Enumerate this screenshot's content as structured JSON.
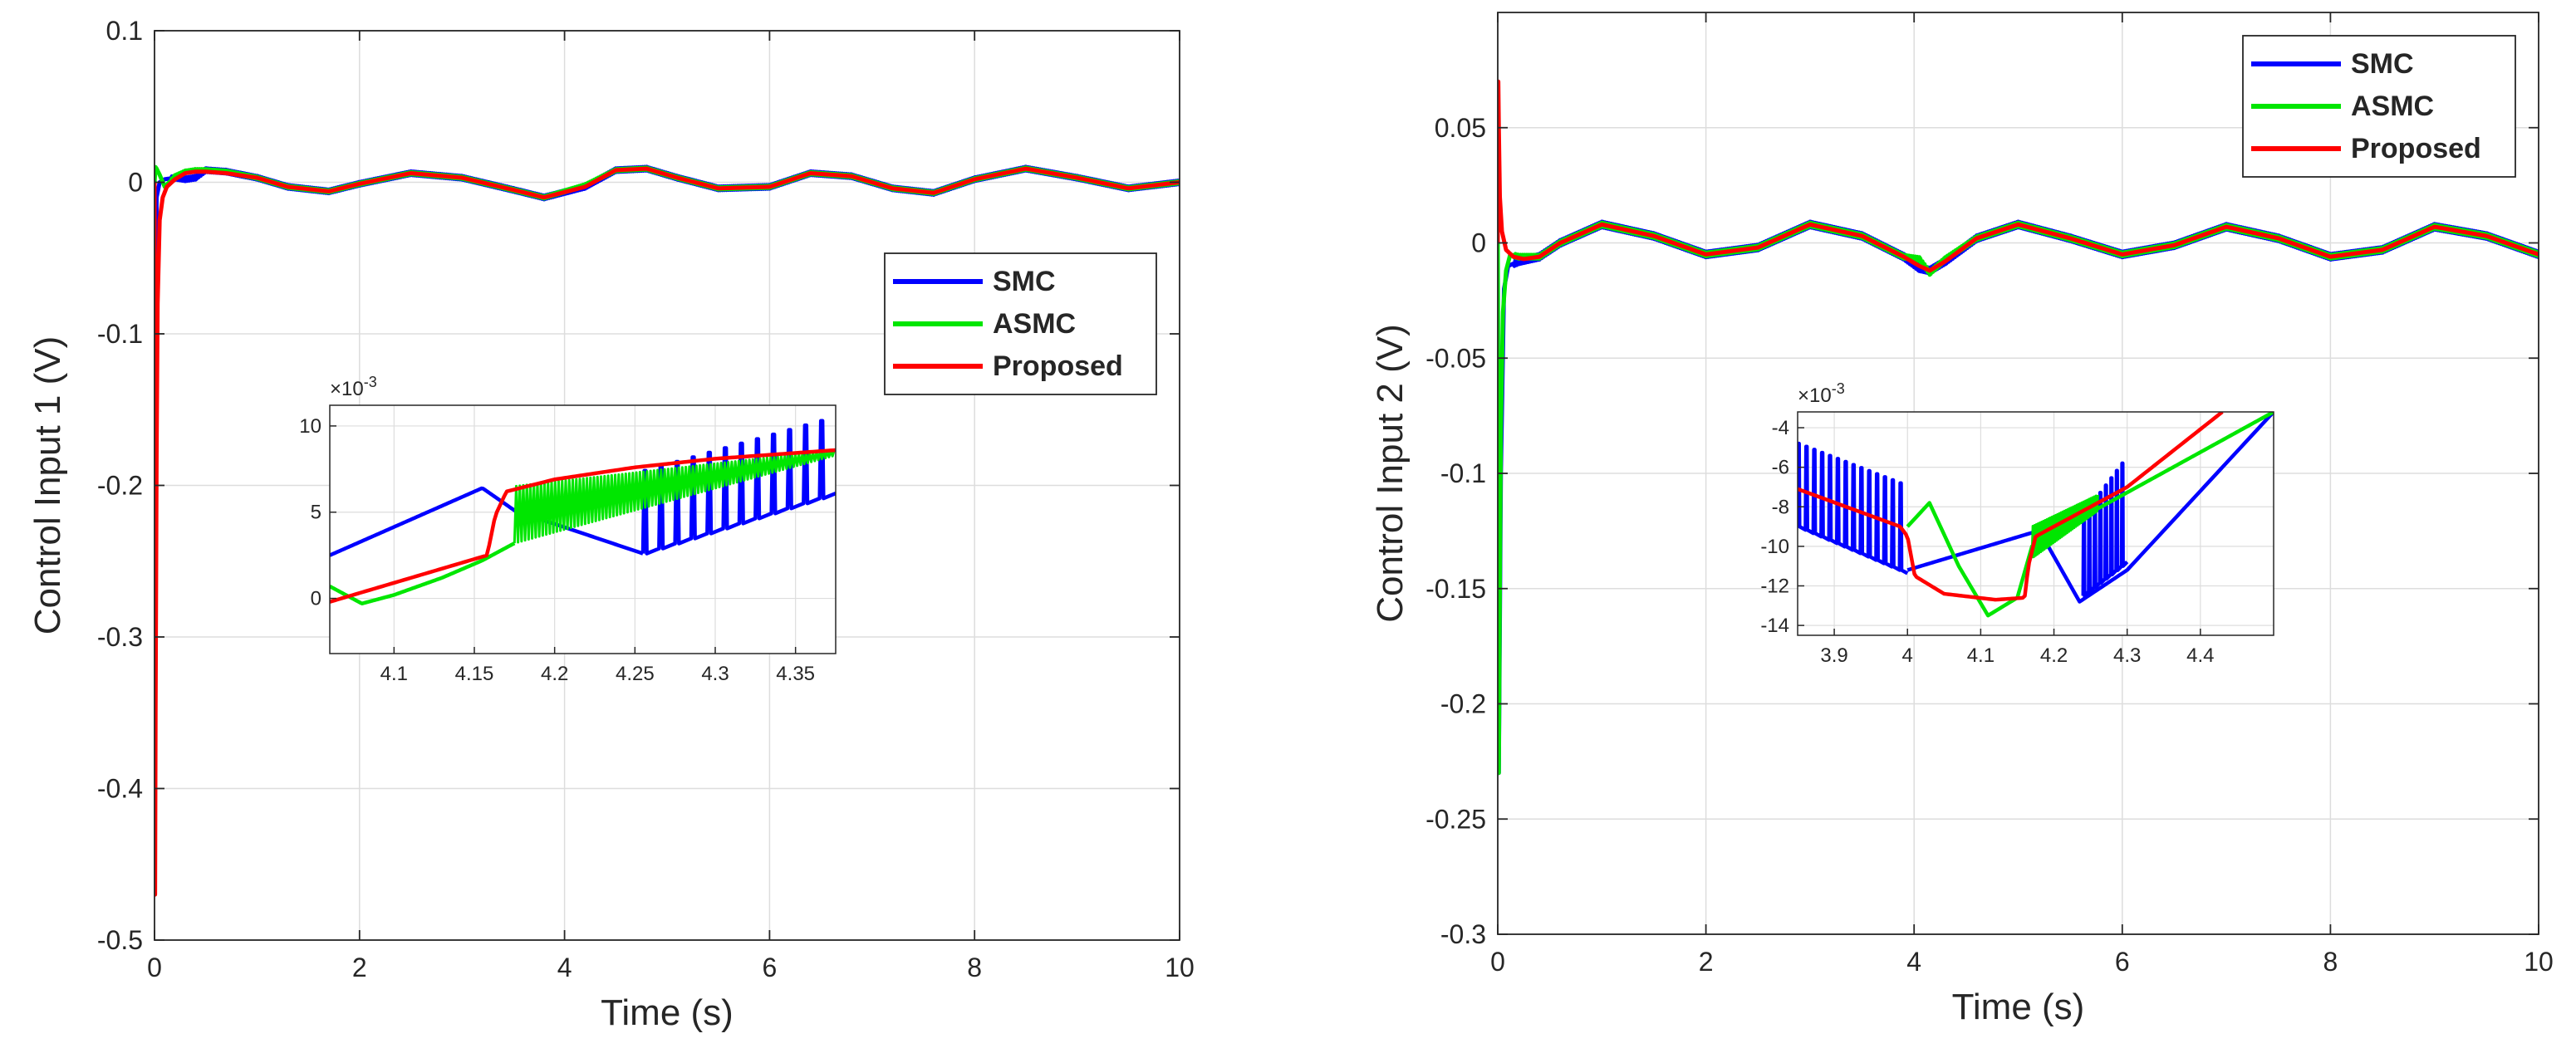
{
  "colors": {
    "smc": "#0000ff",
    "asmc": "#00e600",
    "proposed": "#ff0000",
    "grid": "#dddddd",
    "axis": "#262626",
    "text": "#262626"
  },
  "chart_data": [
    {
      "type": "line",
      "name": "panel-1",
      "xlabel": "Time (s)",
      "ylabel": "Control Input 1 (V)",
      "xlim": [
        0,
        10
      ],
      "ylim": [
        -0.5,
        0.1
      ],
      "xticks": [
        0,
        2,
        4,
        6,
        8,
        10
      ],
      "xtick_labels": [
        "0",
        "2",
        "4",
        "6",
        "8",
        "10"
      ],
      "yticks": [
        -0.5,
        -0.4,
        -0.3,
        -0.2,
        -0.1,
        0,
        0.1
      ],
      "ytick_labels": [
        "-0.5",
        "-0.4",
        "-0.3",
        "-0.2",
        "-0.1",
        "0",
        "0.1"
      ],
      "grid": true,
      "legend": {
        "placement": "right",
        "entries": [
          "SMC",
          "ASMC",
          "Proposed"
        ]
      },
      "series": [
        {
          "name": "SMC",
          "color_key": "smc",
          "noise": 0.0012,
          "x": [
            0,
            0.01,
            0.02,
            0.05,
            0.1,
            0.2,
            0.3,
            0.4,
            0.5,
            0.7,
            1.0,
            1.3,
            1.7,
            2.0,
            2.5,
            3.0,
            3.5,
            3.8,
            4.2,
            4.5,
            4.8,
            5.1,
            5.5,
            6.0,
            6.4,
            6.8,
            7.2,
            7.6,
            8.0,
            8.5,
            9.0,
            9.5,
            10.0
          ],
          "values": [
            0,
            -0.2,
            -0.01,
            0.0,
            0.002,
            0.003,
            0.002,
            0.003,
            0.008,
            0.007,
            0.003,
            -0.003,
            -0.006,
            -0.001,
            0.006,
            0.003,
            -0.005,
            -0.01,
            -0.003,
            0.008,
            0.009,
            0.003,
            -0.004,
            -0.003,
            0.006,
            0.004,
            -0.004,
            -0.007,
            0.002,
            0.009,
            0.003,
            -0.004,
            0.0
          ]
        },
        {
          "name": "ASMC",
          "color_key": "asmc",
          "noise": 0.0007,
          "x": [
            0,
            0.01,
            0.02,
            0.05,
            0.1,
            0.2,
            0.3,
            0.4,
            0.5,
            0.7,
            1.0,
            1.3,
            1.7,
            2.0,
            2.5,
            3.0,
            3.5,
            3.8,
            4.2,
            4.5,
            4.8,
            5.1,
            5.5,
            6.0,
            6.4,
            6.8,
            7.2,
            7.6,
            8.0,
            8.5,
            9.0,
            9.5,
            10.0
          ],
          "values": [
            0,
            0.01,
            0.009,
            0.005,
            -0.003,
            0.004,
            0.007,
            0.008,
            0.008,
            0.007,
            0.003,
            -0.003,
            -0.006,
            -0.001,
            0.006,
            0.003,
            -0.005,
            -0.01,
            -0.002,
            0.008,
            0.009,
            0.003,
            -0.004,
            -0.003,
            0.006,
            0.004,
            -0.004,
            -0.007,
            0.002,
            0.009,
            0.003,
            -0.004,
            0.0
          ]
        },
        {
          "name": "Proposed",
          "color_key": "proposed",
          "noise": 0,
          "x": [
            0,
            0.005,
            0.01,
            0.02,
            0.03,
            0.05,
            0.08,
            0.12,
            0.2,
            0.3,
            0.4,
            0.5,
            0.7,
            1.0,
            1.3,
            1.7,
            2.0,
            2.5,
            3.0,
            3.5,
            3.8,
            4.2,
            4.5,
            4.8,
            5.1,
            5.5,
            6.0,
            6.4,
            6.8,
            7.2,
            7.6,
            8.0,
            8.5,
            9.0,
            9.5,
            10.0
          ],
          "values": [
            0,
            -0.47,
            -0.35,
            -0.18,
            -0.08,
            -0.025,
            -0.01,
            -0.003,
            0.002,
            0.006,
            0.007,
            0.007,
            0.006,
            0.003,
            -0.003,
            -0.006,
            -0.001,
            0.006,
            0.003,
            -0.005,
            -0.01,
            -0.003,
            0.008,
            0.009,
            0.003,
            -0.004,
            -0.003,
            0.006,
            0.004,
            -0.004,
            -0.007,
            0.002,
            0.009,
            0.003,
            -0.004,
            0.0
          ]
        }
      ],
      "inset": {
        "exponent_label": "×10",
        "exponent_power": "-3",
        "xlim": [
          4.06,
          4.375
        ],
        "ylim": [
          -3.2,
          11.2
        ],
        "xticks": [
          4.1,
          4.15,
          4.2,
          4.25,
          4.3,
          4.35
        ],
        "xtick_labels": [
          "4.1",
          "4.15",
          "4.2",
          "4.25",
          "4.3",
          "4.35"
        ],
        "yticks": [
          0,
          5,
          10
        ],
        "ytick_labels": [
          "0",
          "5",
          "10"
        ],
        "series": [
          {
            "name": "SMC",
            "color_key": "smc",
            "x": [
              4.06,
              4.155,
              4.175,
              4.255
            ],
            "values": [
              2.5,
              6.4,
              5.1,
              2.6
            ],
            "spikes": {
              "x_start": 4.255,
              "x_end": 4.375,
              "base_start": 2.6,
              "base_end": 5.8,
              "top_start": 7.4,
              "top_end": 10.3,
              "count": 12,
              "period": 0.0115
            }
          },
          {
            "name": "ASMC",
            "color_key": "asmc",
            "x": [
              4.06,
              4.08,
              4.1,
              4.13,
              4.155,
              4.175
            ],
            "values": [
              0.7,
              -0.3,
              0.2,
              1.2,
              2.2,
              3.2
            ],
            "chatter": {
              "x_start": 4.175,
              "x_end": 4.375,
              "low_start": 3.2,
              "low_end": 8.3,
              "high_start": 6.5,
              "high_end": 8.6,
              "period": 0.0022
            }
          },
          {
            "name": "Proposed",
            "color_key": "proposed",
            "x": [
              4.06,
              4.158,
              4.163,
              4.17,
              4.2,
              4.25,
              4.3,
              4.375
            ],
            "values": [
              -0.2,
              2.5,
              4.8,
              6.2,
              6.9,
              7.6,
              8.1,
              8.6
            ]
          }
        ]
      }
    },
    {
      "type": "line",
      "name": "panel-2",
      "xlabel": "Time (s)",
      "ylabel": "Control Input 2 (V)",
      "xlim": [
        0,
        10
      ],
      "ylim": [
        -0.3,
        0.1
      ],
      "xticks": [
        0,
        2,
        4,
        6,
        8,
        10
      ],
      "xtick_labels": [
        "0",
        "2",
        "4",
        "6",
        "8",
        "10"
      ],
      "yticks": [
        -0.3,
        -0.25,
        -0.2,
        -0.15,
        -0.1,
        -0.05,
        0,
        0.05
      ],
      "ytick_labels": [
        "-0.3",
        "-0.25",
        "-0.2",
        "-0.15",
        "-0.1",
        "-0.05",
        "0",
        "0.05"
      ],
      "grid": true,
      "legend": {
        "placement": "top-right",
        "entries": [
          "SMC",
          "ASMC",
          "Proposed"
        ]
      },
      "series": [
        {
          "name": "SMC",
          "color_key": "smc",
          "noise": 0.0012,
          "x": [
            0,
            0.01,
            0.03,
            0.06,
            0.1,
            0.2,
            0.4,
            0.6,
            1.0,
            1.5,
            2.0,
            2.5,
            3.0,
            3.5,
            3.9,
            4.05,
            4.15,
            4.3,
            4.6,
            5.0,
            5.5,
            6.0,
            6.5,
            7.0,
            7.5,
            8.0,
            8.5,
            9.0,
            9.5,
            10.0
          ],
          "values": [
            0,
            -0.23,
            -0.1,
            -0.02,
            -0.01,
            -0.008,
            -0.006,
            0.0,
            0.008,
            0.003,
            -0.005,
            -0.002,
            0.008,
            0.003,
            -0.006,
            -0.011,
            -0.012,
            -0.008,
            0.002,
            0.008,
            0.002,
            -0.005,
            -0.001,
            0.007,
            0.002,
            -0.006,
            -0.003,
            0.007,
            0.003,
            -0.005
          ]
        },
        {
          "name": "ASMC",
          "color_key": "asmc",
          "noise": 0.0008,
          "x": [
            0,
            0.01,
            0.02,
            0.03,
            0.05,
            0.08,
            0.12,
            0.2,
            0.4,
            0.6,
            1.0,
            1.5,
            2.0,
            2.5,
            3.0,
            3.5,
            3.9,
            4.05,
            4.15,
            4.3,
            4.6,
            5.0,
            5.5,
            6.0,
            6.5,
            7.0,
            7.5,
            8.0,
            8.5,
            9.0,
            9.5,
            10.0
          ],
          "values": [
            0,
            -0.23,
            -0.15,
            -0.08,
            -0.03,
            -0.012,
            -0.005,
            -0.006,
            -0.006,
            0.0,
            0.008,
            0.003,
            -0.005,
            -0.002,
            0.008,
            0.003,
            -0.006,
            -0.007,
            -0.013,
            -0.007,
            0.002,
            0.008,
            0.002,
            -0.005,
            -0.001,
            0.007,
            0.002,
            -0.006,
            -0.003,
            0.007,
            0.003,
            -0.005
          ]
        },
        {
          "name": "Proposed",
          "color_key": "proposed",
          "noise": 0,
          "x": [
            0,
            0.005,
            0.01,
            0.02,
            0.04,
            0.08,
            0.15,
            0.25,
            0.4,
            0.6,
            1.0,
            1.5,
            2.0,
            2.5,
            3.0,
            3.5,
            3.9,
            4.05,
            4.15,
            4.3,
            4.6,
            5.0,
            5.5,
            6.0,
            6.5,
            7.0,
            7.5,
            8.0,
            8.5,
            9.0,
            9.5,
            10.0
          ],
          "values": [
            0,
            0.07,
            0.05,
            0.02,
            0.005,
            -0.003,
            -0.006,
            -0.007,
            -0.006,
            0.0,
            0.008,
            0.003,
            -0.005,
            -0.002,
            0.008,
            0.003,
            -0.006,
            -0.01,
            -0.012,
            -0.008,
            0.002,
            0.008,
            0.002,
            -0.005,
            -0.001,
            0.007,
            0.002,
            -0.006,
            -0.003,
            0.007,
            0.003,
            -0.005
          ]
        }
      ],
      "inset": {
        "exponent_label": "×10",
        "exponent_power": "-3",
        "xlim": [
          3.85,
          4.5
        ],
        "ylim": [
          -14.5,
          -3.2
        ],
        "xticks": [
          3.9,
          4.0,
          4.1,
          4.2,
          4.3,
          4.4
        ],
        "xtick_labels": [
          "3.9",
          "4",
          "4.1",
          "4.2",
          "4.3",
          "4.4"
        ],
        "yticks": [
          -14,
          -12,
          -10,
          -8,
          -6,
          -4
        ],
        "ytick_labels": [
          "-14",
          "-12",
          "-10",
          "-8",
          "-6",
          "-4"
        ],
        "series": [
          {
            "name": "SMC",
            "color_key": "smc",
            "x": [
              4.0,
              4.18,
              4.235,
              4.3,
              4.5
            ],
            "values": [
              -11.2,
              -9.2,
              -12.8,
              -11.2,
              -3.2
            ],
            "spikes": {
              "x_start": 3.85,
              "x_end": 4.0,
              "base_start": -9.0,
              "base_end": -11.2,
              "top_start": -4.8,
              "top_end": -6.8,
              "count": 14,
              "period": 0.0107
            },
            "spikes2": {
              "x_start": 4.24,
              "x_end": 4.3,
              "base_start": -12.5,
              "base_end": -11.0,
              "top_start": -8.4,
              "top_end": -5.8,
              "count": 8,
              "period": 0.0075
            }
          },
          {
            "name": "ASMC",
            "color_key": "asmc",
            "x": [
              4.0,
              4.03,
              4.07,
              4.11,
              4.15,
              4.17,
              4.24,
              4.5
            ],
            "values": [
              -9.0,
              -7.8,
              -11.0,
              -13.5,
              -12.6,
              -10.0,
              -8.5,
              -3.2
            ],
            "chatter": {
              "x_start": 4.17,
              "x_end": 4.26,
              "low_start": -10.6,
              "low_end": -8.2,
              "high_start": -9.0,
              "high_end": -7.4,
              "period": 0.0024
            }
          },
          {
            "name": "Proposed",
            "color_key": "proposed",
            "x": [
              3.85,
              3.99,
              4.0,
              4.01,
              4.05,
              4.12,
              4.16,
              4.165,
              4.175,
              4.25,
              4.3,
              4.43
            ],
            "values": [
              -7.1,
              -9.0,
              -9.5,
              -11.5,
              -12.4,
              -12.7,
              -12.6,
              -11.0,
              -9.5,
              -8.0,
              -7.0,
              -3.2
            ]
          }
        ]
      }
    }
  ]
}
